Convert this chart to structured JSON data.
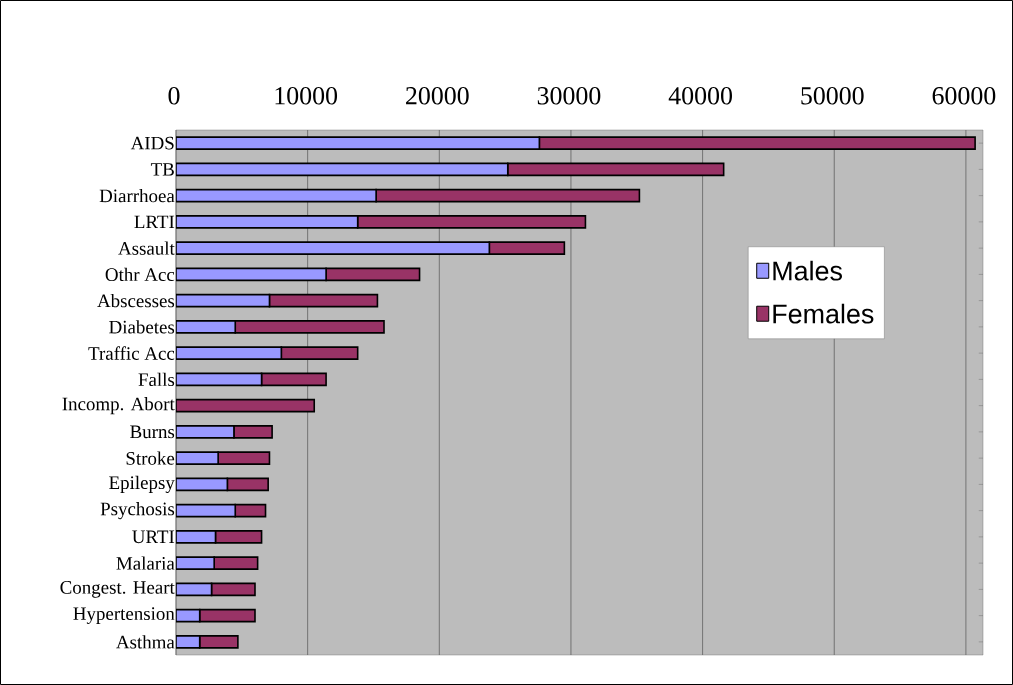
{
  "chart_data": {
    "type": "bar",
    "orientation": "horizontal",
    "stacked": true,
    "categories": [
      "AIDS",
      "TB",
      "Diarrhoea",
      "LRTI",
      "Assault",
      "Othr Acc",
      "Abscesses",
      "Diabetes",
      "Traffic Acc",
      "Falls",
      "Incomp. Abort",
      "Burns",
      "Stroke",
      "Epilepsy",
      "Psychosis",
      "URTI",
      "Malaria",
      "Congest. Heart",
      "Hypertension",
      "Asthma"
    ],
    "series": [
      {
        "name": "Males",
        "color": "#9999ff",
        "values": [
          27600,
          25200,
          15200,
          13800,
          23800,
          11400,
          7100,
          4500,
          8000,
          6500,
          0,
          4400,
          3200,
          3900,
          4500,
          3000,
          2900,
          2700,
          1800,
          1800
        ]
      },
      {
        "name": "Females",
        "color": "#993366",
        "values": [
          33100,
          16400,
          20000,
          17300,
          5700,
          7100,
          8200,
          11300,
          5800,
          4900,
          10500,
          2900,
          3900,
          3100,
          2300,
          3500,
          3300,
          3300,
          4200,
          2900
        ]
      }
    ],
    "xlim": [
      0,
      61300
    ],
    "xticks": [
      0,
      10000,
      20000,
      30000,
      40000,
      50000,
      60000
    ],
    "grid": "x",
    "legend": "right"
  }
}
